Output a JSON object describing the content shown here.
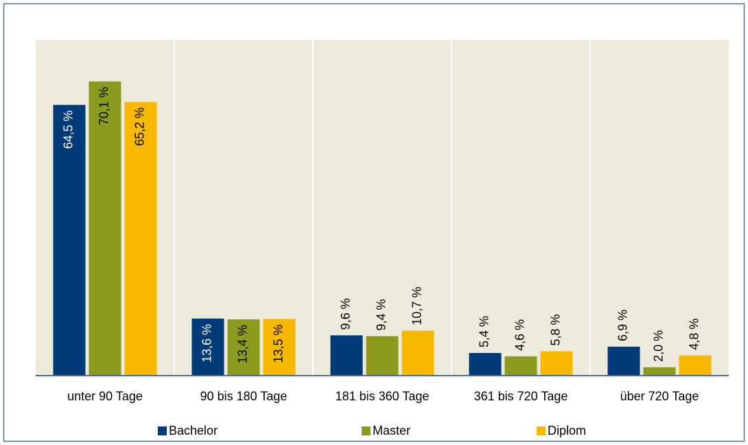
{
  "chart_data": {
    "type": "bar",
    "categories": [
      "unter 90 Tage",
      "90 bis 180 Tage",
      "181 bis 360 Tage",
      "361 bis 720 Tage",
      "über 720 Tage"
    ],
    "series": [
      {
        "name": "Bachelor",
        "color": "#003a78",
        "values": [
          64.5,
          13.6,
          9.6,
          5.4,
          6.9
        ],
        "value_labels": [
          "64,5 %",
          "13,6 %",
          "9,6 %",
          "5,4 %",
          "6,9 %"
        ]
      },
      {
        "name": "Master",
        "color": "#8c9a1e",
        "values": [
          70.1,
          13.4,
          9.4,
          4.6,
          2.0
        ],
        "value_labels": [
          "70,1 %",
          "13,4 %",
          "9,4 %",
          "4,6 %",
          "2,0 %"
        ]
      },
      {
        "name": "Diplom",
        "color": "#f9b800",
        "values": [
          65.2,
          13.5,
          10.7,
          5.8,
          4.8
        ],
        "value_labels": [
          "65,2 %",
          "13,5 %",
          "10,7 %",
          "5,8 %",
          "4,8 %"
        ]
      }
    ],
    "ylim": [
      0,
      80
    ],
    "legend": "bottom"
  }
}
